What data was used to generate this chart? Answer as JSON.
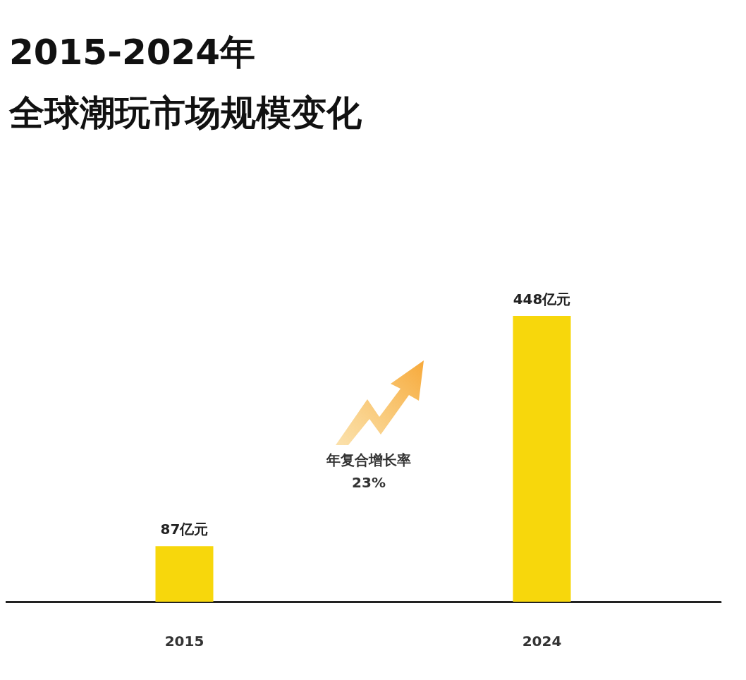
{
  "chart_data": {
    "type": "bar",
    "title": "2015-2024年",
    "subtitle": "全球潮玩市场规模变化",
    "categories": [
      "2015",
      "2024"
    ],
    "values": [
      87,
      448
    ],
    "value_labels": [
      "87亿元",
      "448亿元"
    ],
    "color": "#f7d70c",
    "annotations": [
      "年复合增长率\n23%"
    ],
    "grid": false
  }
}
